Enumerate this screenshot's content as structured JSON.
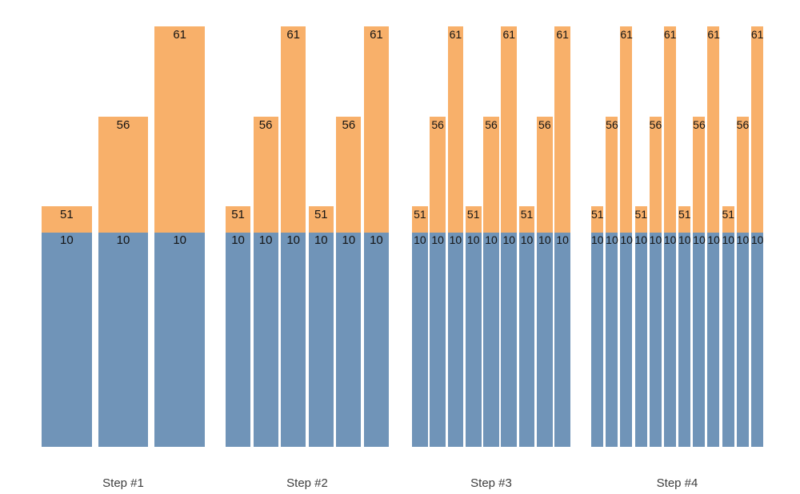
{
  "chart_data": {
    "type": "bar",
    "subtype": "grouped-stacked",
    "title": "",
    "xlabel": "",
    "ylabel": "",
    "grid": false,
    "legend": false,
    "axes_visible": false,
    "background_color": "#ffffff",
    "base_color": "#7094b8",
    "top_color": "#f8b06a",
    "value_label_color": "#141414",
    "category_label_color": "#3d3d3d",
    "base_value": 10,
    "categories": [
      "Step #1",
      "Step #2",
      "Step #3",
      "Step #4"
    ],
    "groups": [
      {
        "label": "Step #1",
        "bars": [
          {
            "value": 51,
            "base": 10
          },
          {
            "value": 56,
            "base": 10
          },
          {
            "value": 61,
            "base": 10
          }
        ]
      },
      {
        "label": "Step #2",
        "bars": [
          {
            "value": 51,
            "base": 10
          },
          {
            "value": 56,
            "base": 10
          },
          {
            "value": 61,
            "base": 10
          },
          {
            "value": 51,
            "base": 10
          },
          {
            "value": 56,
            "base": 10
          },
          {
            "value": 61,
            "base": 10
          }
        ]
      },
      {
        "label": "Step #3",
        "bars": [
          {
            "value": 51,
            "base": 10
          },
          {
            "value": 56,
            "base": 10
          },
          {
            "value": 61,
            "base": 10
          },
          {
            "value": 51,
            "base": 10
          },
          {
            "value": 56,
            "base": 10
          },
          {
            "value": 61,
            "base": 10
          },
          {
            "value": 51,
            "base": 10
          },
          {
            "value": 56,
            "base": 10
          },
          {
            "value": 61,
            "base": 10
          }
        ]
      },
      {
        "label": "Step #4",
        "bars": [
          {
            "value": 51,
            "base": 10
          },
          {
            "value": 56,
            "base": 10
          },
          {
            "value": 61,
            "base": 10
          },
          {
            "value": 51,
            "base": 10
          },
          {
            "value": 56,
            "base": 10
          },
          {
            "value": 61,
            "base": 10
          },
          {
            "value": 51,
            "base": 10
          },
          {
            "value": 56,
            "base": 10
          },
          {
            "value": 61,
            "base": 10
          },
          {
            "value": 51,
            "base": 10
          },
          {
            "value": 56,
            "base": 10
          },
          {
            "value": 61,
            "base": 10
          }
        ]
      }
    ]
  }
}
